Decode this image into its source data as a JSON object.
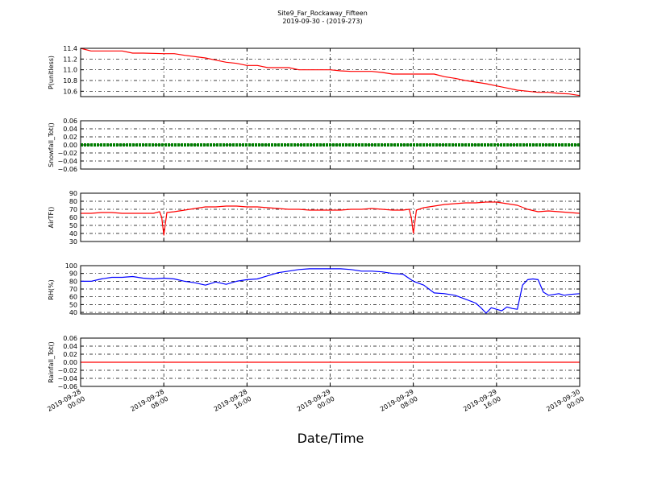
{
  "figure": {
    "title_line1": "Site9_Far_Rockaway_Fifteen",
    "title_line2": "2019-09-30 - (2019-273)",
    "xlabel": "Date/Time"
  },
  "chart_data": [
    {
      "type": "line",
      "ylabel": "P(unitless)",
      "ylim": [
        10.5,
        11.4
      ],
      "yticks": [
        10.6,
        10.8,
        11.0,
        11.2,
        11.4
      ],
      "ytick_labels": [
        "10.6",
        "10.8",
        "11.0",
        "11.2",
        "11.4"
      ],
      "color": "#ff0000",
      "grid": true,
      "x_hours": [
        0,
        1,
        2,
        4,
        5,
        6,
        8,
        9,
        10,
        12,
        13,
        14,
        15,
        16,
        17,
        18,
        20,
        21,
        24,
        25,
        26,
        27,
        28,
        29,
        30,
        32,
        34,
        35,
        36,
        37,
        38,
        39,
        40,
        41,
        42,
        43,
        44,
        45,
        46,
        47,
        48
      ],
      "y": [
        11.4,
        11.35,
        11.35,
        11.35,
        11.31,
        11.31,
        11.3,
        11.3,
        11.27,
        11.22,
        11.18,
        11.14,
        11.12,
        11.08,
        11.08,
        11.04,
        11.04,
        11.0,
        11.0,
        10.98,
        10.97,
        10.97,
        10.97,
        10.95,
        10.92,
        10.92,
        10.92,
        10.87,
        10.84,
        10.8,
        10.77,
        10.74,
        10.7,
        10.66,
        10.62,
        10.6,
        10.58,
        10.58,
        10.56,
        10.55,
        10.52
      ]
    },
    {
      "type": "line",
      "ylabel": "Snowfall_Tot()",
      "ylim": [
        -0.06,
        0.06
      ],
      "yticks": [
        -0.06,
        -0.04,
        -0.02,
        0.0,
        0.02,
        0.04,
        0.06
      ],
      "ytick_labels": [
        "−0.06",
        "−0.04",
        "−0.02",
        "0.00",
        "0.02",
        "0.04",
        "0.06"
      ],
      "color": "#007f00",
      "marker": "dot",
      "grid": true,
      "x_hours": [
        0,
        48
      ],
      "y": [
        0.0,
        0.0
      ]
    },
    {
      "type": "line",
      "ylabel": "AirTF()",
      "ylim": [
        30,
        90
      ],
      "yticks": [
        30,
        40,
        50,
        60,
        70,
        80,
        90
      ],
      "ytick_labels": [
        "30",
        "40",
        "50",
        "60",
        "70",
        "80",
        "90"
      ],
      "color": "#ff0000",
      "grid": true,
      "x_hours": [
        0,
        1,
        2,
        3,
        4,
        5,
        6,
        7,
        7.6,
        7.8,
        8.0,
        8.3,
        9,
        10,
        11,
        12,
        13,
        14,
        15,
        16,
        17,
        18,
        19,
        20,
        21,
        22,
        23,
        24,
        25,
        26,
        27,
        28,
        29,
        30,
        31,
        31.6,
        31.8,
        32.0,
        32.3,
        33,
        34,
        35,
        36,
        37,
        38,
        39,
        40,
        41,
        42,
        43,
        44,
        45,
        46,
        47,
        48
      ],
      "y": [
        65,
        65,
        66,
        66,
        65,
        65,
        65,
        65,
        67,
        60,
        38,
        66,
        67,
        69,
        71,
        73,
        73,
        74,
        74,
        73,
        73,
        72,
        71,
        70,
        70,
        69,
        69,
        69,
        69,
        70,
        70,
        71,
        70,
        69,
        69,
        70,
        60,
        40,
        69,
        72,
        74,
        76,
        77,
        78,
        78,
        79,
        79,
        77,
        75,
        70,
        67,
        68,
        67,
        66,
        65
      ]
    },
    {
      "type": "line",
      "ylabel": "RH(%)",
      "ylim": [
        38,
        100
      ],
      "yticks": [
        40,
        50,
        60,
        70,
        80,
        90,
        100
      ],
      "ytick_labels": [
        "40",
        "50",
        "60",
        "70",
        "80",
        "90",
        "100"
      ],
      "color": "#0000ff",
      "grid": true,
      "x_hours": [
        0,
        1,
        2,
        3,
        4,
        5,
        6,
        7,
        8,
        9,
        10,
        11,
        12,
        13,
        14,
        15,
        16,
        17,
        18,
        19,
        20,
        21,
        22,
        23,
        24,
        25,
        26,
        27,
        28,
        29,
        30,
        31,
        32,
        33,
        34,
        35,
        36,
        37,
        38,
        38.5,
        39,
        39.5,
        40,
        40.5,
        41,
        41.5,
        42,
        42.5,
        43,
        43.5,
        44,
        44.5,
        45,
        46,
        46.5,
        47,
        48
      ],
      "y": [
        80,
        80,
        83,
        85,
        85,
        86,
        84,
        83,
        84,
        83,
        80,
        78,
        75,
        79,
        76,
        80,
        82,
        83,
        87,
        91,
        93,
        95,
        96,
        96,
        96,
        96,
        95,
        93,
        93,
        92,
        90,
        89,
        80,
        75,
        65,
        64,
        62,
        57,
        52,
        46,
        39,
        46,
        44,
        42,
        47,
        45,
        44,
        75,
        82,
        83,
        82,
        66,
        62,
        64,
        62,
        63,
        64
      ]
    },
    {
      "type": "line",
      "ylabel": "Rainfall_Tot()",
      "ylim": [
        -0.06,
        0.06
      ],
      "yticks": [
        -0.06,
        -0.04,
        -0.02,
        0.0,
        0.02,
        0.04,
        0.06
      ],
      "ytick_labels": [
        "−0.06",
        "−0.04",
        "−0.02",
        "0.00",
        "0.02",
        "0.04",
        "0.06"
      ],
      "color": "#ff0000",
      "grid": true,
      "x_hours": [
        0,
        48
      ],
      "y": [
        0.0,
        0.0
      ]
    }
  ],
  "x_axis": {
    "xlim_hours": [
      0,
      48
    ],
    "ticks_hours": [
      0,
      8,
      16,
      24,
      32,
      40,
      48
    ],
    "tick_labels_line1": [
      "2019-09-28",
      "2019-09-28",
      "2019-09-28",
      "2019-09-29",
      "2019-09-29",
      "2019-09-29",
      "2019-09-30"
    ],
    "tick_labels_line2": [
      "00:00",
      "08:00",
      "16:00",
      "00:00",
      "08:00",
      "16:00",
      "00:00"
    ]
  }
}
